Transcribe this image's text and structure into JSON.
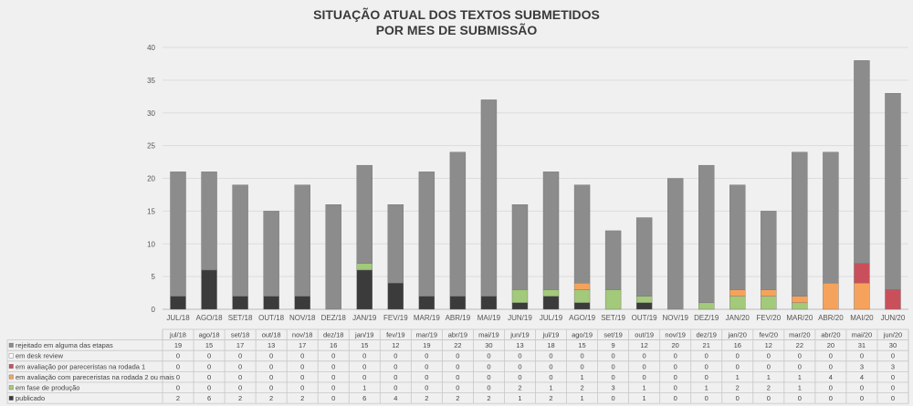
{
  "chart_data": {
    "type": "bar",
    "stacked": true,
    "title_line1": "SITUAÇÃO ATUAL DOS TEXTOS SUBMETIDOS",
    "title_line2": "POR MES DE SUBMISSÃO",
    "ylim": [
      0,
      40
    ],
    "yticks": [
      0,
      5,
      10,
      15,
      20,
      25,
      30,
      35,
      40
    ],
    "grid": true,
    "legend": "table",
    "axis_categories": [
      "JUL/18",
      "AGO/18",
      "SET/18",
      "OUT/18",
      "NOV/18",
      "DEZ/18",
      "JAN/19",
      "FEV/19",
      "MAR/19",
      "ABR/19",
      "MAI/19",
      "JUN/19",
      "JUL/19",
      "AGO/19",
      "SET/19",
      "OUT/19",
      "NOV/19",
      "DEZ/19",
      "JAN/20",
      "FEV/20",
      "MAR/20",
      "ABR/20",
      "MAI/20",
      "JUN/20"
    ],
    "categories": [
      "jul/18",
      "ago/18",
      "set/18",
      "out/18",
      "nov/18",
      "dez/18",
      "jan/19",
      "fev/19",
      "mar/19",
      "abr/19",
      "mai/19",
      "jun/19",
      "jul/19",
      "ago/19",
      "set/19",
      "out/19",
      "nov/19",
      "dez/19",
      "jan/20",
      "fev/20",
      "mar/20",
      "abr/20",
      "mai/20",
      "jun/20"
    ],
    "series": [
      {
        "name": "rejeitado em alguma das etapas",
        "color": "#8c8c8c",
        "values": [
          19,
          15,
          17,
          13,
          17,
          16,
          15,
          12,
          19,
          22,
          30,
          13,
          18,
          15,
          9,
          12,
          20,
          21,
          16,
          12,
          22,
          20,
          31,
          30
        ]
      },
      {
        "name": "em desk review",
        "color": "#ffffff",
        "values": [
          0,
          0,
          0,
          0,
          0,
          0,
          0,
          0,
          0,
          0,
          0,
          0,
          0,
          0,
          0,
          0,
          0,
          0,
          0,
          0,
          0,
          0,
          0,
          0
        ]
      },
      {
        "name": "em avaliação por pareceristas na rodada 1",
        "color": "#c9505a",
        "values": [
          0,
          0,
          0,
          0,
          0,
          0,
          0,
          0,
          0,
          0,
          0,
          0,
          0,
          0,
          0,
          0,
          0,
          0,
          0,
          0,
          0,
          0,
          3,
          3
        ]
      },
      {
        "name": "em avaliação com pareceristas na rodada 2 ou mais",
        "color": "#f5a35c",
        "values": [
          0,
          0,
          0,
          0,
          0,
          0,
          0,
          0,
          0,
          0,
          0,
          0,
          0,
          1,
          0,
          0,
          0,
          0,
          1,
          1,
          1,
          4,
          4,
          0
        ]
      },
      {
        "name": "em fase de produção",
        "color": "#a3c97a",
        "values": [
          0,
          0,
          0,
          0,
          0,
          0,
          1,
          0,
          0,
          0,
          0,
          2,
          1,
          2,
          3,
          1,
          0,
          1,
          2,
          2,
          1,
          0,
          0,
          0
        ]
      },
      {
        "name": "publicado",
        "color": "#3b3b3b",
        "values": [
          2,
          6,
          2,
          2,
          2,
          0,
          6,
          4,
          2,
          2,
          2,
          1,
          2,
          1,
          0,
          1,
          0,
          0,
          0,
          0,
          0,
          0,
          0,
          0
        ]
      }
    ]
  }
}
